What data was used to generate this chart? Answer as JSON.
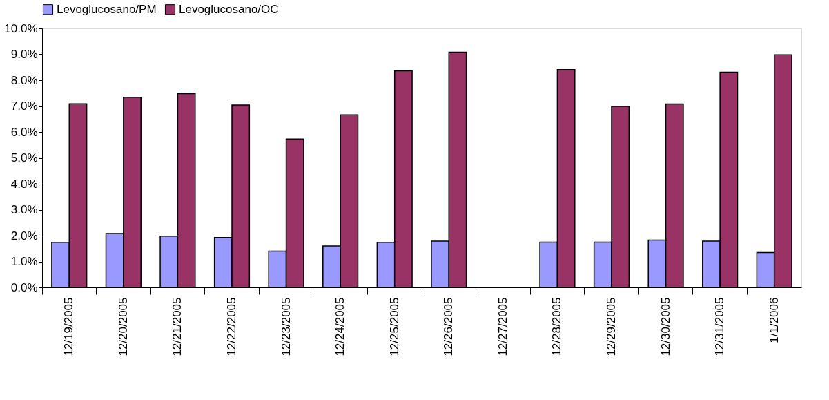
{
  "chart_data": {
    "type": "bar",
    "categories": [
      "12/19/2005",
      "12/20/2005",
      "12/21/2005",
      "12/22/2005",
      "12/23/2005",
      "12/24/2005",
      "12/25/2005",
      "12/26/2005",
      "12/27/2005",
      "12/28/2005",
      "12/29/2005",
      "12/30/2005",
      "12/31/2005",
      "1/1/2006"
    ],
    "series": [
      {
        "name": "Levoglucosano/PM",
        "color": "#9999ff",
        "values": [
          1.74,
          2.08,
          1.98,
          1.93,
          1.4,
          1.6,
          1.74,
          1.79,
          null,
          1.75,
          1.75,
          1.83,
          1.79,
          1.35
        ]
      },
      {
        "name": "Levoglucosano/OC",
        "color": "#993366",
        "values": [
          7.09,
          7.34,
          7.48,
          7.04,
          5.73,
          6.66,
          8.36,
          9.08,
          null,
          8.41,
          6.99,
          7.08,
          8.31,
          8.98
        ]
      }
    ],
    "ylim": [
      0,
      10
    ],
    "yticks": [
      {
        "value": 0,
        "label": "0.0%"
      },
      {
        "value": 1,
        "label": "1.0%"
      },
      {
        "value": 2,
        "label": "2.0%"
      },
      {
        "value": 3,
        "label": "3.0%"
      },
      {
        "value": 4,
        "label": "4.0%"
      },
      {
        "value": 5,
        "label": "5.0%"
      },
      {
        "value": 6,
        "label": "6.0%"
      },
      {
        "value": 7,
        "label": "7.0%"
      },
      {
        "value": 8,
        "label": "8.0%"
      },
      {
        "value": 9,
        "label": "9.0%"
      },
      {
        "value": 10,
        "label": "10.0%"
      }
    ],
    "grid": false,
    "legend": "top"
  }
}
